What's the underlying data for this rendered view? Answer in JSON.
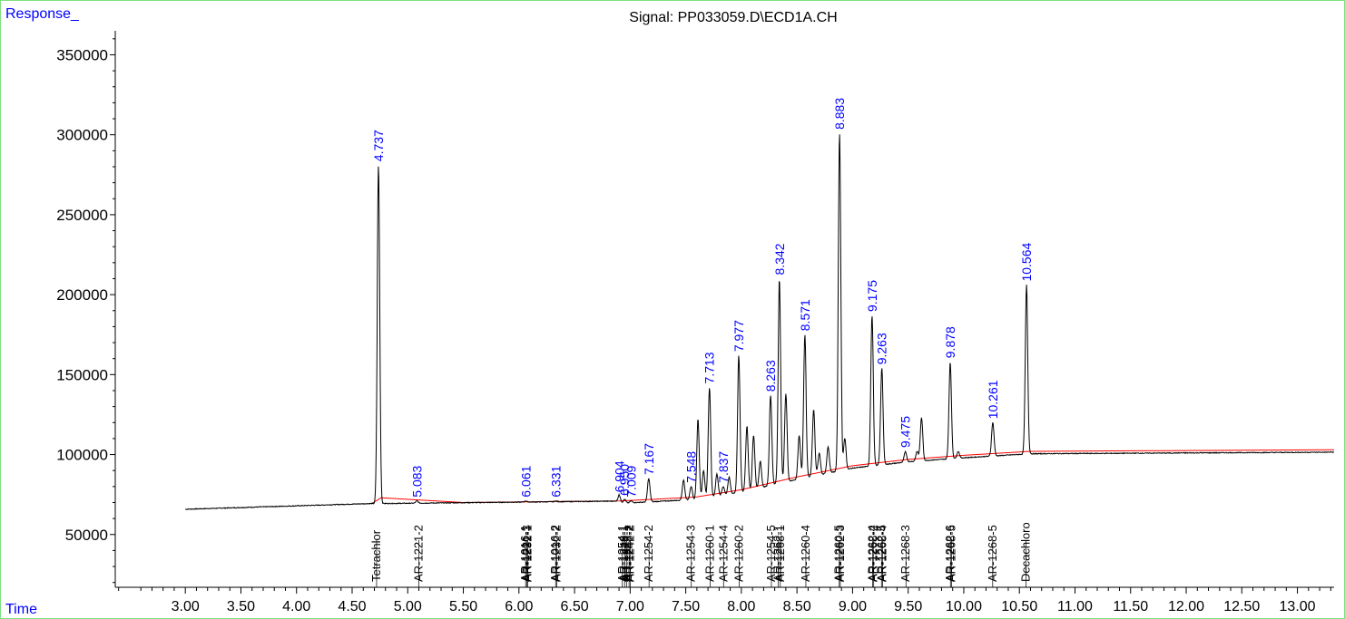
{
  "chart_data": {
    "type": "line",
    "title": "Signal: PP033059.D\\ECD1A.CH",
    "ylabel": "Response_",
    "xlabel": "Time",
    "xlim": [
      2.37,
      13.33
    ],
    "ylim": [
      17000,
      365000
    ],
    "x_ticks": [
      3.0,
      3.5,
      4.0,
      4.5,
      5.0,
      5.5,
      6.0,
      6.5,
      7.0,
      7.5,
      8.0,
      8.5,
      9.0,
      9.5,
      10.0,
      10.5,
      11.0,
      11.5,
      12.0,
      12.5,
      13.0
    ],
    "x_tick_labels": [
      "3.00",
      "3.50",
      "4.00",
      "4.50",
      "5.00",
      "5.50",
      "6.00",
      "6.50",
      "7.00",
      "7.50",
      "8.00",
      "8.50",
      "9.00",
      "9.50",
      "10.00",
      "10.50",
      "11.00",
      "11.50",
      "12.00",
      "12.50",
      "13.00"
    ],
    "y_ticks": [
      50000,
      100000,
      150000,
      200000,
      250000,
      300000,
      350000
    ],
    "y_tick_labels": [
      "50000",
      "100000",
      "150000",
      "200000",
      "250000",
      "300000",
      "350000"
    ],
    "colors": {
      "trace": "#000000",
      "baseline": "#ff0000",
      "peak_labels": "#0000ff",
      "compound_labels": "#000000",
      "frame": "#7fe07f"
    },
    "baseline_points": [
      [
        4.68,
        69500
      ],
      [
        4.76,
        73000
      ],
      [
        5.5,
        70000
      ],
      [
        6.9,
        71000
      ],
      [
        7.2,
        72000
      ],
      [
        7.6,
        73500
      ],
      [
        8.0,
        78000
      ],
      [
        8.5,
        86000
      ],
      [
        9.0,
        93000
      ],
      [
        9.5,
        97000
      ],
      [
        10.0,
        99500
      ],
      [
        10.6,
        102000
      ],
      [
        13.33,
        103000
      ]
    ],
    "peaks": [
      {
        "rt": 4.737,
        "height": 281000,
        "label": "4.737"
      },
      {
        "rt": 5.083,
        "height": 71000,
        "label": "5.083"
      },
      {
        "rt": 6.061,
        "height": 71000,
        "label": "6.061"
      },
      {
        "rt": 6.331,
        "height": 71000,
        "label": "6.331"
      },
      {
        "rt": 6.904,
        "height": 74000,
        "label": "6.904"
      },
      {
        "rt": 6.95,
        "height": 72000,
        "label": "6.950"
      },
      {
        "rt": 7.009,
        "height": 71000,
        "label": "7.009"
      },
      {
        "rt": 7.167,
        "height": 85000,
        "label": "7.167"
      },
      {
        "rt": 7.548,
        "height": 80000,
        "label": "7.548"
      },
      {
        "rt": 7.713,
        "height": 142000,
        "label": "7.713"
      },
      {
        "rt": 7.837,
        "height": 80000,
        "label": "7.837"
      },
      {
        "rt": 7.977,
        "height": 162000,
        "label": "7.977"
      },
      {
        "rt": 8.263,
        "height": 137000,
        "label": "8.263"
      },
      {
        "rt": 8.342,
        "height": 210000,
        "label": "8.342"
      },
      {
        "rt": 8.571,
        "height": 175000,
        "label": "8.571"
      },
      {
        "rt": 8.883,
        "height": 301000,
        "label": "8.883"
      },
      {
        "rt": 9.175,
        "height": 187000,
        "label": "9.175"
      },
      {
        "rt": 9.263,
        "height": 154000,
        "label": "9.263"
      },
      {
        "rt": 9.475,
        "height": 102000,
        "label": "9.475"
      },
      {
        "rt": 9.878,
        "height": 158000,
        "label": "9.878"
      },
      {
        "rt": 10.261,
        "height": 120000,
        "label": "10.261"
      },
      {
        "rt": 10.564,
        "height": 206000,
        "label": "10.564"
      }
    ],
    "minor_peaks": [
      {
        "rt": 7.48,
        "height": 84000
      },
      {
        "rt": 7.61,
        "height": 122000
      },
      {
        "rt": 7.66,
        "height": 90000
      },
      {
        "rt": 7.78,
        "height": 88000
      },
      {
        "rt": 7.89,
        "height": 86000
      },
      {
        "rt": 8.05,
        "height": 118000
      },
      {
        "rt": 8.11,
        "height": 112000
      },
      {
        "rt": 8.17,
        "height": 96000
      },
      {
        "rt": 8.4,
        "height": 138000
      },
      {
        "rt": 8.52,
        "height": 112000
      },
      {
        "rt": 8.65,
        "height": 128000
      },
      {
        "rt": 8.7,
        "height": 101000
      },
      {
        "rt": 8.78,
        "height": 105000
      },
      {
        "rt": 8.93,
        "height": 110000
      },
      {
        "rt": 9.58,
        "height": 102000
      },
      {
        "rt": 9.62,
        "height": 123000
      },
      {
        "rt": 9.95,
        "height": 102000
      }
    ],
    "compounds": [
      {
        "rt": 4.72,
        "label": "Tetrachlor"
      },
      {
        "rt": 5.1,
        "label": "AR-1221-2"
      },
      {
        "rt": 6.06,
        "label": "AR-1016-1"
      },
      {
        "rt": 6.07,
        "label": "AR-1221-3"
      },
      {
        "rt": 6.08,
        "label": "AR-1232-1"
      },
      {
        "rt": 6.33,
        "label": "AR-1016-2"
      },
      {
        "rt": 6.34,
        "label": "AR-1232-2"
      },
      {
        "rt": 6.93,
        "label": "AR-1254-1"
      },
      {
        "rt": 6.95,
        "label": "AR-1248-1"
      },
      {
        "rt": 6.97,
        "label": "AR-1242-1"
      },
      {
        "rt": 6.99,
        "label": "AR-1248-2"
      },
      {
        "rt": 7.0,
        "label": "AR-1242-2"
      },
      {
        "rt": 7.17,
        "label": "AR-1254-2"
      },
      {
        "rt": 7.55,
        "label": "AR-1254-3"
      },
      {
        "rt": 7.72,
        "label": "AR-1260-1"
      },
      {
        "rt": 7.84,
        "label": "AR-1254-4"
      },
      {
        "rt": 7.98,
        "label": "AR-1260-2"
      },
      {
        "rt": 8.27,
        "label": "AR-1254-5"
      },
      {
        "rt": 8.33,
        "label": "AR-1262-1"
      },
      {
        "rt": 8.35,
        "label": "AR-1268-1"
      },
      {
        "rt": 8.58,
        "label": "AR-1260-4"
      },
      {
        "rt": 8.88,
        "label": "AR-1260-5"
      },
      {
        "rt": 8.89,
        "label": "AR-1262-3"
      },
      {
        "rt": 9.18,
        "label": "AR-1262-4"
      },
      {
        "rt": 9.19,
        "label": "AR-1268-2"
      },
      {
        "rt": 9.26,
        "label": "AR-1262-5"
      },
      {
        "rt": 9.27,
        "label": "AR-1268-4"
      },
      {
        "rt": 9.48,
        "label": "AR-1268-3"
      },
      {
        "rt": 9.88,
        "label": "AR-1262-6"
      },
      {
        "rt": 9.89,
        "label": "AR-1268-5"
      },
      {
        "rt": 10.26,
        "label": "AR-1268-5"
      },
      {
        "rt": 10.56,
        "label": "Decachloro"
      }
    ],
    "grid": false,
    "legend": "none"
  }
}
